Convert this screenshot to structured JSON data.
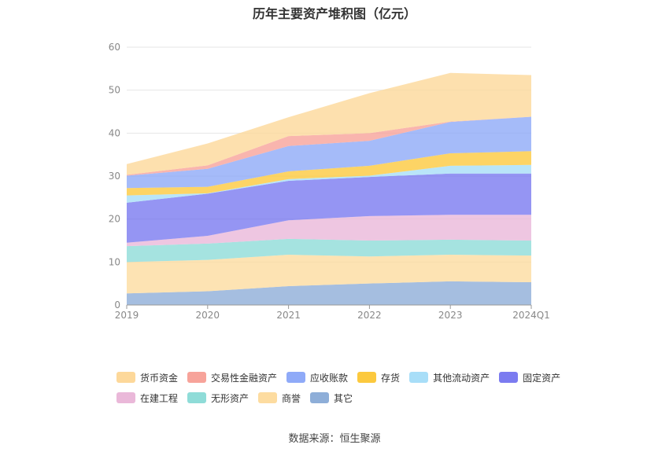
{
  "chart_data": {
    "type": "area",
    "stacked": true,
    "title": "历年主要资产堆积图（亿元）",
    "categories": [
      "2019",
      "2020",
      "2021",
      "2022",
      "2023",
      "2024Q1"
    ],
    "ylim": [
      0,
      60
    ],
    "yticks": [
      0,
      10,
      20,
      30,
      40,
      50,
      60
    ],
    "grid": true,
    "legend_position": "bottom",
    "series": [
      {
        "name": "其它",
        "color": "#8eaed8",
        "values": [
          2.7,
          3.2,
          4.4,
          5.0,
          5.5,
          5.3
        ]
      },
      {
        "name": "商誉",
        "color": "#fddca0",
        "values": [
          7.3,
          7.3,
          7.3,
          6.3,
          6.2,
          6.2
        ]
      },
      {
        "name": "无形资产",
        "color": "#8fdcd8",
        "values": [
          3.7,
          3.8,
          3.7,
          3.7,
          3.5,
          3.5
        ]
      },
      {
        "name": "在建工程",
        "color": "#eab8d9",
        "values": [
          0.8,
          1.8,
          4.3,
          5.7,
          5.8,
          6.0
        ]
      },
      {
        "name": "固定资产",
        "color": "#7b7bf0",
        "values": [
          9.3,
          9.8,
          9.2,
          9.1,
          9.6,
          9.6
        ]
      },
      {
        "name": "其他流动资产",
        "color": "#a8def8",
        "values": [
          1.7,
          0.1,
          0.4,
          0.3,
          1.8,
          2.0
        ]
      },
      {
        "name": "存货",
        "color": "#fcc93e",
        "values": [
          1.7,
          1.5,
          1.8,
          2.3,
          2.9,
          3.2
        ]
      },
      {
        "name": "应收账款",
        "color": "#8faaf8",
        "values": [
          2.9,
          4.2,
          5.9,
          5.8,
          7.3,
          8.0
        ]
      },
      {
        "name": "交易性金融资产",
        "color": "#f7a39a",
        "values": [
          0.2,
          0.8,
          2.3,
          1.8,
          0.1,
          0.0
        ]
      },
      {
        "name": "货币资金",
        "color": "#fdd89a",
        "values": [
          2.5,
          5.1,
          4.4,
          9.3,
          11.3,
          9.7
        ]
      }
    ],
    "legend_order": [
      "货币资金",
      "交易性金融资产",
      "应收账款",
      "存货",
      "其他流动资产",
      "固定资产",
      "在建工程",
      "无形资产",
      "商誉",
      "其它"
    ]
  },
  "source": "数据来源：恒生聚源"
}
